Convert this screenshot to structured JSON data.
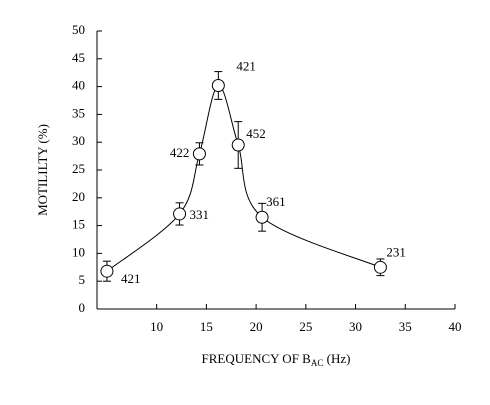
{
  "chart_data": {
    "type": "scatter",
    "ylabel": "MOTILILTY (%)",
    "xlabel": {
      "text": "FREQUENCY OF B",
      "subscript": "AC",
      "suffix": " (Hz)"
    },
    "x": [
      5.0,
      12.3,
      14.3,
      16.2,
      18.2,
      20.6,
      32.5
    ],
    "values": [
      6.8,
      17.1,
      27.9,
      40.2,
      29.5,
      16.5,
      7.5
    ],
    "errors": [
      1.8,
      2.0,
      2.0,
      2.5,
      4.2,
      2.5,
      1.5
    ],
    "point_labels": [
      "421",
      "331",
      "422",
      "421",
      "452",
      "361",
      "231"
    ],
    "xlim": [
      4,
      40
    ],
    "xticks": [
      10,
      15,
      20,
      25,
      30,
      35,
      40
    ],
    "ylim": [
      0,
      50
    ],
    "yticks": [
      0,
      5,
      10,
      15,
      20,
      25,
      30,
      35,
      40,
      45,
      50
    ],
    "smooth_curve": true,
    "color": "#000000"
  }
}
